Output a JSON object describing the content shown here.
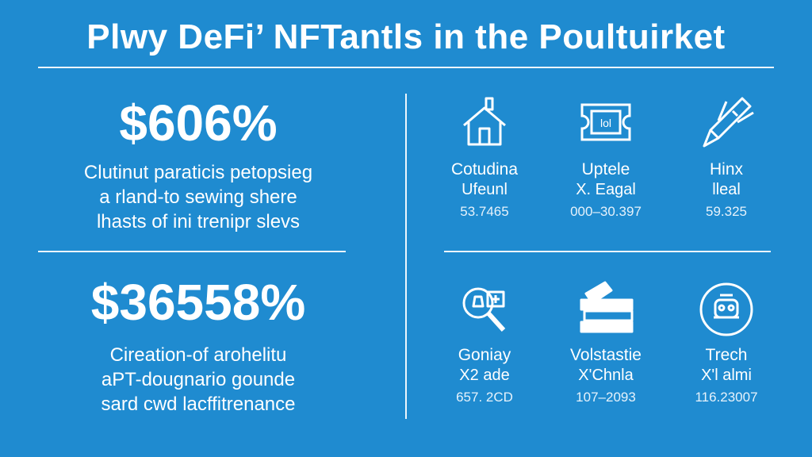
{
  "title": "Plwy DeFi’ NFTantls in the Poultuirket",
  "left": {
    "stats": [
      {
        "value": "$606%",
        "lines": [
          "Clutinut paraticis petopsieg",
          "a rland-to sewing shere",
          "lhasts of ini trenipr slevs"
        ]
      },
      {
        "value": "$36558%",
        "lines": [
          "Cireation-of arohelitu",
          "aPT-dougnario gounde",
          "sard cwd lacffitrenance"
        ]
      }
    ]
  },
  "grid": {
    "cells": [
      {
        "icon": "house-icon",
        "label": "Cotudina",
        "sub": "Ufeunl",
        "value": "53.7465"
      },
      {
        "icon": "ticket-icon",
        "label": "Uptele",
        "sub": "X. Eagal",
        "value": "000–30.397"
      },
      {
        "icon": "rocket-pen-icon",
        "label": "Hinx",
        "sub": "lleal",
        "value": "59.325"
      },
      {
        "icon": "magnifier-icon",
        "label": "Goniay",
        "sub": "X2 ade",
        "value": "657. 2CD"
      },
      {
        "icon": "stacked-books-icon",
        "label": "Volstastie",
        "sub": "X'Chnla",
        "value": "107–2093"
      },
      {
        "icon": "robot-circle-icon",
        "label": "Trech",
        "sub": "X'l almi",
        "value": "116.23007"
      }
    ]
  }
}
